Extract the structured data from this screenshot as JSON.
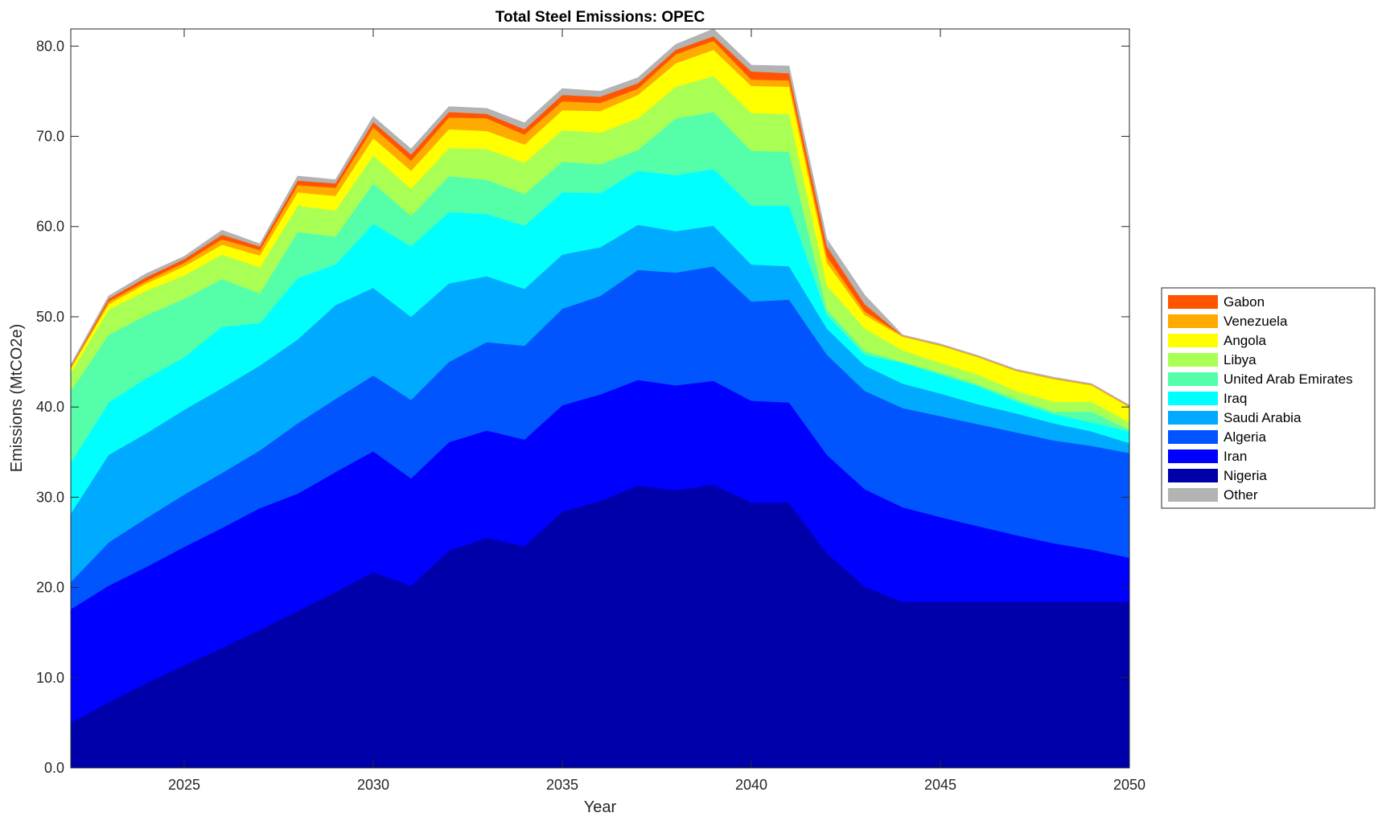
{
  "chart_data": {
    "type": "area",
    "stacked": true,
    "values_are_cumulative_stack_tops": true,
    "title": "Total Steel Emissions: OPEC",
    "xlabel": "Year",
    "ylabel": "Emissions (MtCO2e)",
    "xlim": [
      2022,
      2050
    ],
    "ylim": [
      0,
      81.9
    ],
    "xticks": [
      "2025",
      "2030",
      "2035",
      "2040",
      "2045",
      "2050"
    ],
    "xtick_values": [
      2025,
      2030,
      2035,
      2040,
      2045,
      2050
    ],
    "yticks": [
      "0.0",
      "10.0",
      "20.0",
      "30.0",
      "40.0",
      "50.0",
      "60.0",
      "70.0",
      "80.0"
    ],
    "ytick_values": [
      0,
      10,
      20,
      30,
      40,
      50,
      60,
      70,
      80
    ],
    "grid": false,
    "legend_placement": "outside-right",
    "x": [
      2022,
      2023,
      2024,
      2025,
      2026,
      2027,
      2028,
      2029,
      2030,
      2031,
      2032,
      2033,
      2034,
      2035,
      2036,
      2037,
      2038,
      2039,
      2040,
      2041,
      2042,
      2043,
      2044,
      2045,
      2046,
      2047,
      2048,
      2049,
      2050
    ],
    "series": [
      {
        "name": "Nigeria",
        "color": "#0000AA",
        "values": [
          5.0,
          7.3,
          9.4,
          11.4,
          13.3,
          15.3,
          17.4,
          19.5,
          21.7,
          20.2,
          24.1,
          25.5,
          24.6,
          28.4,
          29.6,
          31.3,
          30.8,
          31.4,
          29.4,
          29.4,
          23.8,
          20.1,
          18.4,
          18.4,
          18.4,
          18.4,
          18.4,
          18.4,
          18.4
        ]
      },
      {
        "name": "Iran",
        "color": "#0000FF",
        "values": [
          17.6,
          20.2,
          22.3,
          24.5,
          26.6,
          28.8,
          30.4,
          32.8,
          35.1,
          32.1,
          36.1,
          37.4,
          36.4,
          40.2,
          41.4,
          43.0,
          42.4,
          42.9,
          40.7,
          40.5,
          34.7,
          30.9,
          28.9,
          27.8,
          26.8,
          25.8,
          24.9,
          24.2,
          23.3
        ]
      },
      {
        "name": "Algeria",
        "color": "#0055FF",
        "values": [
          20.6,
          25.0,
          27.7,
          30.3,
          32.7,
          35.2,
          38.2,
          40.9,
          43.5,
          40.8,
          45.0,
          47.2,
          46.8,
          50.9,
          52.3,
          55.2,
          54.9,
          55.6,
          51.7,
          51.9,
          45.8,
          41.8,
          39.9,
          39.0,
          38.1,
          37.2,
          36.3,
          35.7,
          34.9
        ]
      },
      {
        "name": "Saudi Arabia",
        "color": "#00AAFF",
        "values": [
          28.2,
          34.7,
          37.1,
          39.7,
          42.1,
          44.6,
          47.5,
          51.3,
          53.2,
          50.0,
          53.7,
          54.5,
          53.1,
          56.9,
          57.7,
          60.2,
          59.5,
          60.1,
          55.8,
          55.6,
          48.7,
          44.6,
          42.6,
          41.5,
          40.3,
          39.3,
          38.2,
          37.3,
          36.0
        ]
      },
      {
        "name": "Iraq",
        "color": "#00FFFF",
        "values": [
          33.8,
          40.5,
          43.2,
          45.5,
          48.9,
          49.3,
          54.3,
          55.8,
          60.3,
          57.8,
          61.6,
          61.4,
          60.1,
          63.8,
          63.7,
          66.2,
          65.7,
          66.4,
          62.3,
          62.3,
          50.2,
          45.8,
          44.9,
          43.6,
          42.3,
          40.6,
          39.2,
          38.3,
          37.3
        ]
      },
      {
        "name": "United Arab Emirates",
        "color": "#55FFAA",
        "values": [
          41.8,
          48.0,
          50.2,
          52.0,
          54.2,
          52.6,
          59.4,
          58.9,
          64.8,
          61.2,
          65.6,
          65.2,
          63.6,
          67.2,
          66.9,
          68.5,
          72.0,
          72.7,
          68.4,
          68.3,
          50.8,
          46.2,
          45.0,
          43.8,
          42.5,
          40.9,
          39.5,
          39.5,
          37.5
        ]
      },
      {
        "name": "Libya",
        "color": "#AAFF55",
        "values": [
          43.8,
          50.8,
          52.9,
          54.6,
          56.9,
          55.5,
          62.3,
          61.8,
          67.9,
          64.2,
          68.7,
          68.6,
          67.1,
          70.7,
          70.4,
          72.0,
          75.5,
          76.7,
          72.6,
          72.5,
          53.5,
          48.7,
          46.3,
          44.9,
          43.6,
          41.8,
          40.6,
          40.6,
          38.3
        ]
      },
      {
        "name": "Angola",
        "color": "#FFFF00",
        "values": [
          44.3,
          51.4,
          53.7,
          55.6,
          58.0,
          56.8,
          63.8,
          63.4,
          69.8,
          66.2,
          70.8,
          70.6,
          69.1,
          72.9,
          72.8,
          74.6,
          78.1,
          79.6,
          75.6,
          75.5,
          56.0,
          50.2,
          47.8,
          46.8,
          45.5,
          44.0,
          43.1,
          42.4,
          40.0
        ]
      },
      {
        "name": "Venezuela",
        "color": "#FFAA00",
        "values": [
          44.4,
          51.7,
          54.0,
          56.0,
          58.6,
          57.4,
          64.6,
          64.3,
          71.0,
          67.3,
          72.1,
          72.0,
          70.2,
          73.9,
          73.7,
          75.3,
          79.1,
          80.6,
          76.3,
          76.2,
          56.7,
          50.6,
          47.9,
          46.9,
          45.6,
          44.1,
          43.2,
          42.5,
          40.1
        ]
      },
      {
        "name": "Gabon",
        "color": "#FF5500",
        "values": [
          44.5,
          52.0,
          54.4,
          56.4,
          59.1,
          57.8,
          65.1,
          64.8,
          71.6,
          68.0,
          72.7,
          72.5,
          70.8,
          74.6,
          74.4,
          75.9,
          79.6,
          81.1,
          77.2,
          77.0,
          57.8,
          51.4,
          47.9,
          46.9,
          45.6,
          44.1,
          43.2,
          42.5,
          40.1
        ]
      },
      {
        "name": "Other",
        "color": "#B3B3B3",
        "values": [
          44.7,
          52.3,
          54.8,
          56.7,
          59.6,
          58.1,
          65.6,
          65.2,
          72.2,
          68.6,
          73.3,
          73.1,
          71.5,
          75.3,
          75.0,
          76.5,
          80.2,
          81.9,
          77.9,
          77.8,
          58.6,
          52.4,
          48.0,
          47.0,
          45.7,
          44.2,
          43.3,
          42.6,
          40.2
        ]
      }
    ],
    "legend_order": [
      "Gabon",
      "Venezuela",
      "Angola",
      "Libya",
      "United Arab Emirates",
      "Iraq",
      "Saudi Arabia",
      "Algeria",
      "Iran",
      "Nigeria",
      "Other"
    ]
  }
}
